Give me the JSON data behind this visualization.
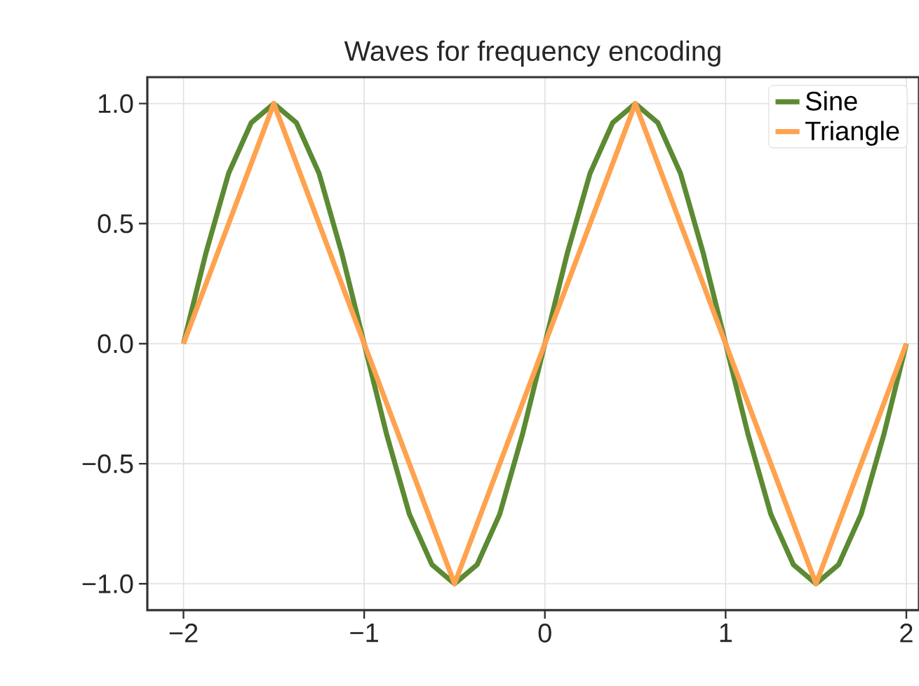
{
  "chart_data": {
    "type": "line",
    "title": "Waves for frequency encoding",
    "x": [
      -2,
      -1.875,
      -1.75,
      -1.625,
      -1.5,
      -1.375,
      -1.25,
      -1.125,
      -1,
      -0.875,
      -0.75,
      -0.625,
      -0.5,
      -0.375,
      -0.25,
      -0.125,
      0,
      0.125,
      0.25,
      0.375,
      0.5,
      0.625,
      0.75,
      0.875,
      1,
      1.125,
      1.25,
      1.375,
      1.5,
      1.625,
      1.75,
      1.875,
      2
    ],
    "series": [
      {
        "name": "Sine",
        "color": "#5b8a32",
        "values": [
          0,
          0.38,
          0.71,
          0.92,
          1,
          0.92,
          0.71,
          0.38,
          0,
          -0.38,
          -0.71,
          -0.92,
          -1,
          -0.92,
          -0.71,
          -0.38,
          0,
          0.38,
          0.71,
          0.92,
          1,
          0.92,
          0.71,
          0.38,
          0,
          -0.38,
          -0.71,
          -0.92,
          -1,
          -0.92,
          -0.71,
          -0.38,
          0
        ]
      },
      {
        "name": "Triangle",
        "color": "#ffa24f",
        "x": [
          -2,
          -1.5,
          -0.5,
          0.5,
          1.5,
          2
        ],
        "values": [
          0,
          1,
          -1,
          1,
          -1,
          0
        ]
      }
    ],
    "xlim": [
      -2.2,
      2.07
    ],
    "ylim": [
      -1.11,
      1.11
    ],
    "xticks": [
      {
        "value": -2,
        "label": "−2"
      },
      {
        "value": -1,
        "label": "−1"
      },
      0,
      1,
      2
    ],
    "yticks": [
      {
        "value": -1,
        "label": "−1.0"
      },
      {
        "value": -0.5,
        "label": "−0.5"
      },
      {
        "value": 0,
        "label": "0.0"
      },
      {
        "value": 0.5,
        "label": "0.5"
      },
      {
        "value": 1,
        "label": "1.0"
      }
    ],
    "grid": true,
    "legend": "top right"
  }
}
